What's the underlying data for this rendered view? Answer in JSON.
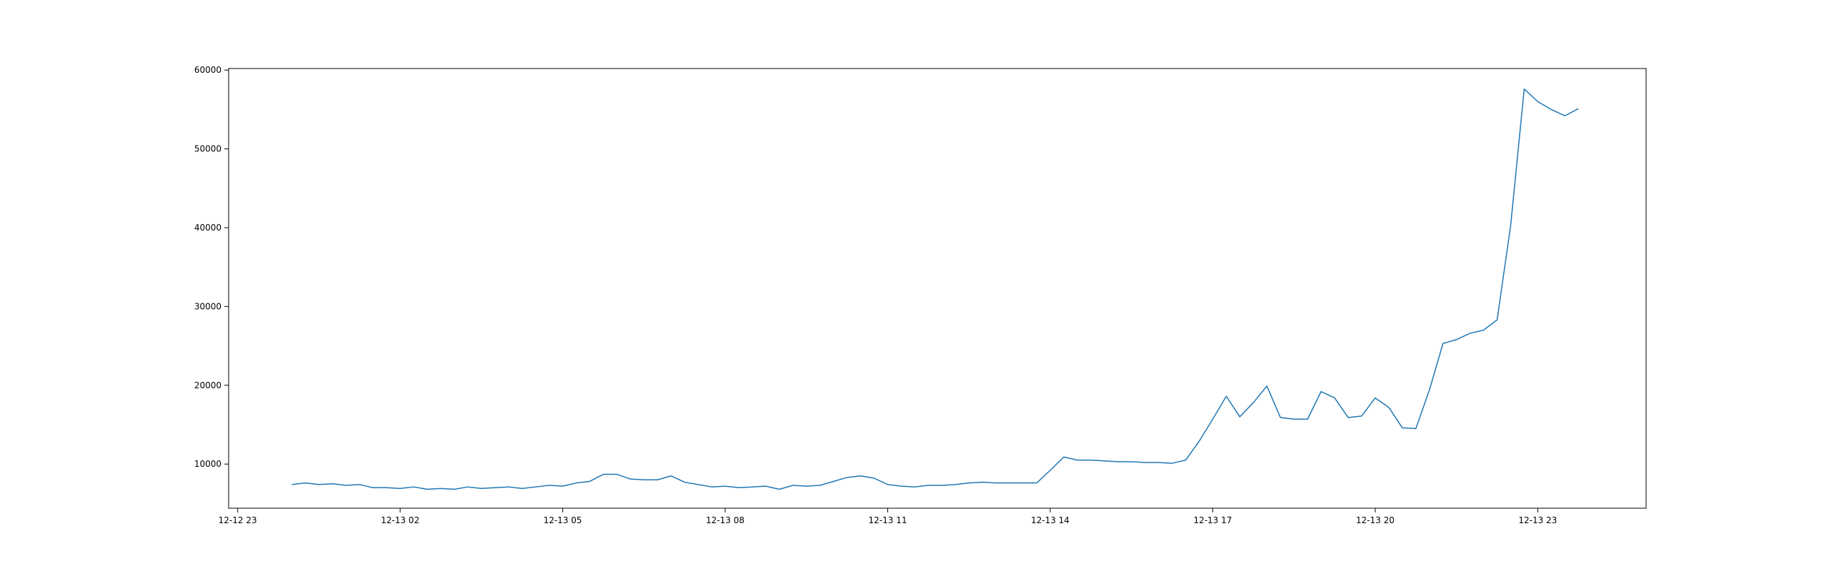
{
  "chart_data": {
    "type": "line",
    "title": "",
    "xlabel": "",
    "ylabel": "",
    "grid": false,
    "legend": "none",
    "line_color": "#1f77b4",
    "x_tick_labels": [
      "12-12 23",
      "12-13 02",
      "12-13 05",
      "12-13 08",
      "12-13 11",
      "12-13 14",
      "12-13 17",
      "12-13 20",
      "12-13 23"
    ],
    "x_tick_values": [
      "2024-12-12 23:00",
      "2024-12-13 02:00",
      "2024-12-13 05:00",
      "2024-12-13 08:00",
      "2024-12-13 11:00",
      "2024-12-13 14:00",
      "2024-12-13 17:00",
      "2024-12-13 20:00",
      "2024-12-13 23:00"
    ],
    "y_tick_labels": [
      "10000",
      "20000",
      "30000",
      "40000",
      "50000",
      "60000"
    ],
    "y_tick_values": [
      10000,
      20000,
      30000,
      40000,
      50000,
      60000
    ],
    "xlim": [
      "2024-12-12 22:50",
      "2024-12-14 01:00"
    ],
    "ylim": [
      4400,
      60200
    ],
    "series": [
      {
        "x": [
          "2024-12-13 00:00",
          "2024-12-13 00:15",
          "2024-12-13 00:30",
          "2024-12-13 00:45",
          "2024-12-13 01:00",
          "2024-12-13 01:15",
          "2024-12-13 01:30",
          "2024-12-13 01:45",
          "2024-12-13 02:00",
          "2024-12-13 02:15",
          "2024-12-13 02:30",
          "2024-12-13 02:45",
          "2024-12-13 03:00",
          "2024-12-13 03:15",
          "2024-12-13 03:30",
          "2024-12-13 03:45",
          "2024-12-13 04:00",
          "2024-12-13 04:15",
          "2024-12-13 04:30",
          "2024-12-13 04:45",
          "2024-12-13 05:00",
          "2024-12-13 05:15",
          "2024-12-13 05:30",
          "2024-12-13 05:45",
          "2024-12-13 06:00",
          "2024-12-13 06:15",
          "2024-12-13 06:30",
          "2024-12-13 06:45",
          "2024-12-13 07:00",
          "2024-12-13 07:15",
          "2024-12-13 07:30",
          "2024-12-13 07:45",
          "2024-12-13 08:00",
          "2024-12-13 08:15",
          "2024-12-13 08:30",
          "2024-12-13 08:45",
          "2024-12-13 09:00",
          "2024-12-13 09:15",
          "2024-12-13 09:30",
          "2024-12-13 09:45",
          "2024-12-13 10:00",
          "2024-12-13 10:15",
          "2024-12-13 10:30",
          "2024-12-13 10:45",
          "2024-12-13 11:00",
          "2024-12-13 11:15",
          "2024-12-13 11:30",
          "2024-12-13 11:45",
          "2024-12-13 12:00",
          "2024-12-13 12:15",
          "2024-12-13 12:30",
          "2024-12-13 12:45",
          "2024-12-13 13:00",
          "2024-12-13 13:15",
          "2024-12-13 13:30",
          "2024-12-13 13:45",
          "2024-12-13 14:00",
          "2024-12-13 14:15",
          "2024-12-13 14:30",
          "2024-12-13 14:45",
          "2024-12-13 15:00",
          "2024-12-13 15:15",
          "2024-12-13 15:30",
          "2024-12-13 15:45",
          "2024-12-13 16:00",
          "2024-12-13 16:15",
          "2024-12-13 16:30",
          "2024-12-13 16:45",
          "2024-12-13 17:00",
          "2024-12-13 17:15",
          "2024-12-13 17:30",
          "2024-12-13 17:45",
          "2024-12-13 18:00",
          "2024-12-13 18:15",
          "2024-12-13 18:30",
          "2024-12-13 18:45",
          "2024-12-13 19:00",
          "2024-12-13 19:15",
          "2024-12-13 19:30",
          "2024-12-13 19:45",
          "2024-12-13 20:00",
          "2024-12-13 20:15",
          "2024-12-13 20:30",
          "2024-12-13 20:45",
          "2024-12-13 21:00",
          "2024-12-13 21:15",
          "2024-12-13 21:30",
          "2024-12-13 21:45",
          "2024-12-13 22:00",
          "2024-12-13 22:15",
          "2024-12-13 22:30",
          "2024-12-13 22:45",
          "2024-12-13 23:00",
          "2024-12-13 23:15",
          "2024-12-13 23:30",
          "2024-12-13 23:45"
        ],
        "values": [
          7400,
          7600,
          7400,
          7500,
          7300,
          7400,
          7000,
          7000,
          6900,
          7100,
          6800,
          6900,
          6800,
          7100,
          6900,
          7000,
          7100,
          6900,
          7100,
          7300,
          7200,
          7600,
          7800,
          8700,
          8700,
          8100,
          8000,
          8000,
          8500,
          7700,
          7400,
          7100,
          7200,
          7000,
          7100,
          7200,
          6800,
          7300,
          7200,
          7300,
          7800,
          8300,
          8500,
          8200,
          7400,
          7200,
          7100,
          7300,
          7300,
          7400,
          7600,
          7700,
          7600,
          7600,
          7600,
          7600,
          9200,
          10900,
          10500,
          10500,
          10400,
          10300,
          10300,
          10200,
          10200,
          10100,
          10500,
          12900,
          15700,
          18600,
          16000,
          17800,
          19900,
          15900,
          15700,
          15700,
          19200,
          18400,
          15900,
          16100,
          18400,
          17200,
          14600,
          14500,
          19400,
          25300,
          25800,
          26600,
          27000,
          28300,
          40300,
          57600,
          56000,
          55000,
          54200,
          55100
        ]
      }
    ]
  }
}
